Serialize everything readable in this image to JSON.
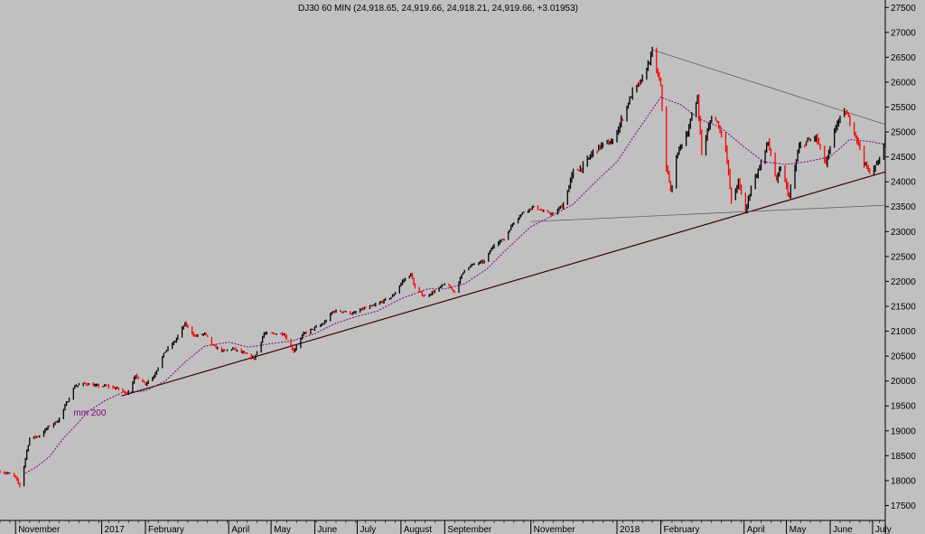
{
  "colors": {
    "background": "#c0c0c0",
    "up_bar": "#000000",
    "down_bar": "#ff0000",
    "moving_average": "#800080",
    "trendline": "#400000",
    "channel_line": "#606060"
  },
  "chart_data": {
    "type": "line",
    "title": "DJ30 60 MIN (24,918.65, 24,919.66, 24,918.21, 24,919.66, +3.01953)",
    "ylim": [
      17200,
      27650
    ],
    "y_axis_position": "right",
    "y_ticks": [
      17500,
      18000,
      18500,
      19000,
      19500,
      20000,
      20500,
      21000,
      21500,
      22000,
      22500,
      23000,
      23500,
      24000,
      24500,
      25000,
      25500,
      26000,
      26500,
      27000,
      27500
    ],
    "x_range": [
      "2016-10-21",
      "2018-07-10"
    ],
    "x_ticks": [
      {
        "date": "2016-11-01",
        "label": "November"
      },
      {
        "date": "2017-01-01",
        "label": "2017"
      },
      {
        "date": "2017-02-01",
        "label": "February"
      },
      {
        "date": "2017-04-01",
        "label": "April"
      },
      {
        "date": "2017-05-01",
        "label": "May"
      },
      {
        "date": "2017-06-01",
        "label": "June"
      },
      {
        "date": "2017-07-01",
        "label": "July"
      },
      {
        "date": "2017-08-01",
        "label": "August"
      },
      {
        "date": "2017-09-01",
        "label": "September"
      },
      {
        "date": "2017-11-01",
        "label": "November"
      },
      {
        "date": "2018-01-01",
        "label": "2018"
      },
      {
        "date": "2018-02-01",
        "label": "February"
      },
      {
        "date": "2018-04-01",
        "label": "April"
      },
      {
        "date": "2018-05-01",
        "label": "May"
      },
      {
        "date": "2018-06-01",
        "label": "June"
      },
      {
        "date": "2018-07-01",
        "label": "July"
      }
    ],
    "grid": false,
    "series": [
      {
        "kind": "price",
        "points": [
          [
            "2016-10-21",
            18180
          ],
          [
            "2016-10-26",
            18150
          ],
          [
            "2016-10-31",
            18100
          ],
          [
            "2016-11-04",
            17900
          ],
          [
            "2016-11-07",
            18300
          ],
          [
            "2016-11-09",
            18600
          ],
          [
            "2016-11-11",
            18850
          ],
          [
            "2016-11-18",
            18900
          ],
          [
            "2016-11-25",
            19100
          ],
          [
            "2016-12-01",
            19200
          ],
          [
            "2016-12-07",
            19550
          ],
          [
            "2016-12-13",
            19900
          ],
          [
            "2016-12-20",
            19950
          ],
          [
            "2016-12-28",
            19900
          ],
          [
            "2017-01-04",
            19900
          ],
          [
            "2017-01-12",
            19850
          ],
          [
            "2017-01-19",
            19750
          ],
          [
            "2017-01-25",
            20100
          ],
          [
            "2017-02-01",
            19950
          ],
          [
            "2017-02-07",
            20100
          ],
          [
            "2017-02-15",
            20600
          ],
          [
            "2017-02-22",
            20800
          ],
          [
            "2017-03-01",
            21150
          ],
          [
            "2017-03-08",
            20900
          ],
          [
            "2017-03-15",
            20950
          ],
          [
            "2017-03-21",
            20700
          ],
          [
            "2017-03-28",
            20600
          ],
          [
            "2017-04-04",
            20650
          ],
          [
            "2017-04-12",
            20550
          ],
          [
            "2017-04-19",
            20450
          ],
          [
            "2017-04-26",
            20950
          ],
          [
            "2017-05-03",
            20950
          ],
          [
            "2017-05-10",
            20950
          ],
          [
            "2017-05-17",
            20600
          ],
          [
            "2017-05-24",
            20950
          ],
          [
            "2017-05-31",
            21050
          ],
          [
            "2017-06-07",
            21150
          ],
          [
            "2017-06-14",
            21400
          ],
          [
            "2017-06-21",
            21400
          ],
          [
            "2017-06-28",
            21350
          ],
          [
            "2017-07-05",
            21450
          ],
          [
            "2017-07-12",
            21500
          ],
          [
            "2017-07-19",
            21600
          ],
          [
            "2017-07-26",
            21700
          ],
          [
            "2017-08-02",
            22000
          ],
          [
            "2017-08-08",
            22150
          ],
          [
            "2017-08-11",
            21850
          ],
          [
            "2017-08-18",
            21700
          ],
          [
            "2017-08-25",
            21800
          ],
          [
            "2017-09-01",
            21950
          ],
          [
            "2017-09-08",
            21800
          ],
          [
            "2017-09-15",
            22250
          ],
          [
            "2017-09-22",
            22350
          ],
          [
            "2017-09-29",
            22400
          ],
          [
            "2017-10-06",
            22750
          ],
          [
            "2017-10-13",
            22850
          ],
          [
            "2017-10-20",
            23200
          ],
          [
            "2017-10-27",
            23400
          ],
          [
            "2017-11-03",
            23500
          ],
          [
            "2017-11-10",
            23400
          ],
          [
            "2017-11-17",
            23350
          ],
          [
            "2017-11-24",
            23550
          ],
          [
            "2017-12-01",
            24200
          ],
          [
            "2017-12-08",
            24300
          ],
          [
            "2017-12-15",
            24600
          ],
          [
            "2017-12-22",
            24750
          ],
          [
            "2017-12-29",
            24800
          ],
          [
            "2018-01-05",
            25300
          ],
          [
            "2018-01-12",
            25800
          ],
          [
            "2018-01-19",
            26050
          ],
          [
            "2018-01-26",
            26600
          ],
          [
            "2018-02-01",
            25900
          ],
          [
            "2018-02-05",
            24300
          ],
          [
            "2018-02-08",
            23800
          ],
          [
            "2018-02-13",
            24600
          ],
          [
            "2018-02-20",
            25000
          ],
          [
            "2018-02-27",
            25700
          ],
          [
            "2018-03-02",
            24600
          ],
          [
            "2018-03-09",
            25300
          ],
          [
            "2018-03-13",
            25200
          ],
          [
            "2018-03-19",
            24700
          ],
          [
            "2018-03-23",
            23600
          ],
          [
            "2018-03-28",
            24000
          ],
          [
            "2018-04-02",
            23400
          ],
          [
            "2018-04-06",
            23900
          ],
          [
            "2018-04-12",
            24300
          ],
          [
            "2018-04-18",
            24800
          ],
          [
            "2018-04-24",
            24000
          ],
          [
            "2018-04-27",
            24300
          ],
          [
            "2018-05-03",
            23700
          ],
          [
            "2018-05-10",
            24700
          ],
          [
            "2018-05-15",
            24800
          ],
          [
            "2018-05-22",
            24900
          ],
          [
            "2018-05-29",
            24350
          ],
          [
            "2018-06-06",
            25200
          ],
          [
            "2018-06-12",
            25400
          ],
          [
            "2018-06-19",
            24950
          ],
          [
            "2018-06-25",
            24400
          ],
          [
            "2018-06-28",
            24200
          ],
          [
            "2018-07-03",
            24300
          ],
          [
            "2018-07-06",
            24450
          ],
          [
            "2018-07-10",
            24920
          ]
        ]
      },
      {
        "kind": "moving_average",
        "points": [
          [
            "2016-11-08",
            18150
          ],
          [
            "2016-11-15",
            18260
          ],
          [
            "2016-11-25",
            18480
          ],
          [
            "2016-12-05",
            18850
          ],
          [
            "2016-12-15",
            19150
          ],
          [
            "2016-12-22",
            19380
          ],
          [
            "2017-01-03",
            19600
          ],
          [
            "2017-01-15",
            19760
          ],
          [
            "2017-02-01",
            19800
          ],
          [
            "2017-02-15",
            20000
          ],
          [
            "2017-03-01",
            20380
          ],
          [
            "2017-03-15",
            20700
          ],
          [
            "2017-04-01",
            20780
          ],
          [
            "2017-04-15",
            20680
          ],
          [
            "2017-05-01",
            20750
          ],
          [
            "2017-05-15",
            20800
          ],
          [
            "2017-06-01",
            20950
          ],
          [
            "2017-06-15",
            21150
          ],
          [
            "2017-07-01",
            21300
          ],
          [
            "2017-07-15",
            21400
          ],
          [
            "2017-08-01",
            21650
          ],
          [
            "2017-08-20",
            21850
          ],
          [
            "2017-09-01",
            21850
          ],
          [
            "2017-09-15",
            21950
          ],
          [
            "2017-10-01",
            22250
          ],
          [
            "2017-10-15",
            22650
          ],
          [
            "2017-11-01",
            23100
          ],
          [
            "2017-11-15",
            23300
          ],
          [
            "2017-12-01",
            23550
          ],
          [
            "2017-12-15",
            23950
          ],
          [
            "2018-01-01",
            24400
          ],
          [
            "2018-01-15",
            25000
          ],
          [
            "2018-02-01",
            25700
          ],
          [
            "2018-02-15",
            25550
          ],
          [
            "2018-03-01",
            25250
          ],
          [
            "2018-03-15",
            25100
          ],
          [
            "2018-04-01",
            24700
          ],
          [
            "2018-04-15",
            24400
          ],
          [
            "2018-05-01",
            24350
          ],
          [
            "2018-05-15",
            24400
          ],
          [
            "2018-06-01",
            24500
          ],
          [
            "2018-06-15",
            24850
          ],
          [
            "2018-07-01",
            24800
          ],
          [
            "2018-07-10",
            24750
          ]
        ]
      }
    ],
    "trendlines": [
      {
        "kind": "support",
        "from": [
          "2017-01-15",
          19700
        ],
        "to": [
          "2018-07-10",
          24200
        ]
      },
      {
        "kind": "resistance",
        "from": [
          "2018-01-26",
          26650
        ],
        "to": [
          "2018-07-10",
          25150
        ]
      },
      {
        "kind": "horizontal",
        "from": [
          "2017-11-01",
          23200
        ],
        "to": [
          "2018-07-10",
          23530
        ]
      }
    ],
    "annotations": [
      {
        "text": "mm 200",
        "date": "2016-12-12",
        "value": 19300
      }
    ]
  }
}
